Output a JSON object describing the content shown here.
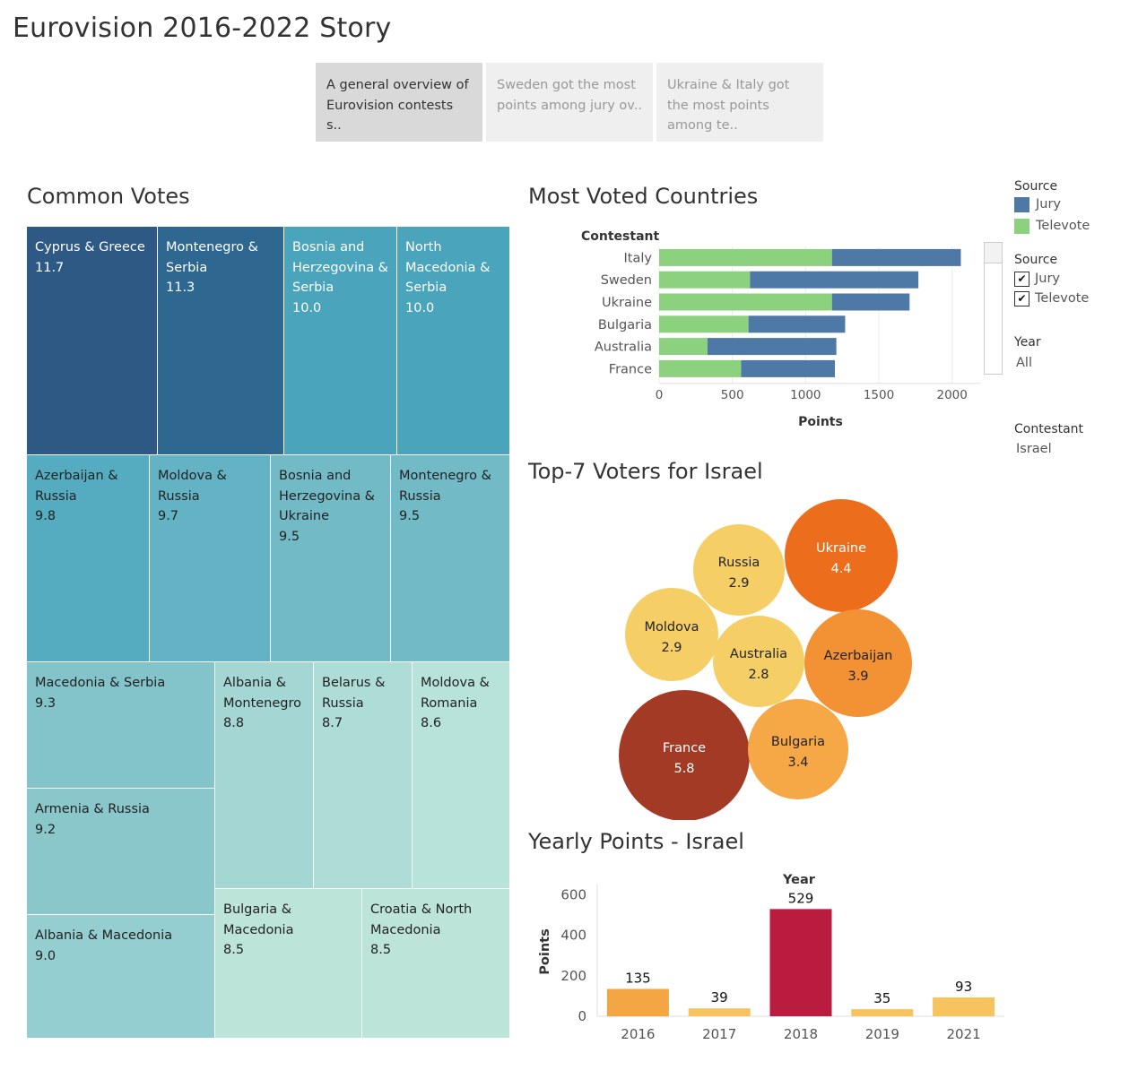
{
  "title": "Eurovision 2016-2022 Story",
  "story_points": [
    {
      "label": "A general overview of Eurovision contests s..",
      "active": true
    },
    {
      "label": "Sweden got the most points among jury ov..",
      "active": false
    },
    {
      "label": "Ukraine & Italy got the most points among te..",
      "active": false
    }
  ],
  "legends": {
    "source_color_title": "Source",
    "source_color_items": [
      {
        "label": "Jury",
        "color": "#4e79a7"
      },
      {
        "label": "Televote",
        "color": "#8cd17d"
      }
    ],
    "source_filter_title": "Source",
    "source_filter_items": [
      {
        "label": "Jury",
        "checked": true
      },
      {
        "label": "Televote",
        "checked": true
      }
    ],
    "year_filter_title": "Year",
    "year_filter_value": "All",
    "contestant_filter_title": "Contestant",
    "contestant_filter_value": "Israel"
  },
  "colors": {
    "jury": "#4e79a7",
    "televote": "#8cd17d",
    "bar_highlight": "#b91c3f",
    "bar_orange": "#f4a544",
    "bar_light": "#f7c35f"
  },
  "chart_data": [
    {
      "type": "treemap",
      "title": "Common Votes",
      "items": [
        {
          "label": "Cyprus & Greece",
          "value": "11.7"
        },
        {
          "label": "Montenegro & Serbia",
          "value": "11.3"
        },
        {
          "label": "Bosnia and Herzegovina & Serbia",
          "value": "10.0"
        },
        {
          "label": "North Macedonia & Serbia",
          "value": "10.0"
        },
        {
          "label": "Azerbaijan & Russia",
          "value": "9.8"
        },
        {
          "label": "Moldova & Russia",
          "value": "9.7"
        },
        {
          "label": "Bosnia and Herzegovina & Ukraine",
          "value": "9.5"
        },
        {
          "label": "Montenegro & Russia",
          "value": "9.5"
        },
        {
          "label": "Macedonia & Serbia",
          "value": "9.3"
        },
        {
          "label": "Albania & Montenegro",
          "value": "8.8"
        },
        {
          "label": "Belarus & Russia",
          "value": "8.7"
        },
        {
          "label": "Moldova & Romania",
          "value": "8.6"
        },
        {
          "label": "Armenia & Russia",
          "value": "9.2"
        },
        {
          "label": "Albania & Macedonia",
          "value": "9.0"
        },
        {
          "label": "Bulgaria & Macedonia",
          "value": "8.5"
        },
        {
          "label": "Croatia & North Macedonia",
          "value": "8.5"
        }
      ]
    },
    {
      "type": "bar",
      "orientation": "horizontal",
      "stacked": true,
      "title": "Most Voted Countries",
      "row_header": "Contestant",
      "categories": [
        "Italy",
        "Sweden",
        "Ukraine",
        "Bulgaria",
        "Australia",
        "France"
      ],
      "series": [
        {
          "name": "Televote",
          "values": [
            1180,
            620,
            1180,
            610,
            330,
            560
          ]
        },
        {
          "name": "Jury",
          "values": [
            880,
            1150,
            530,
            660,
            880,
            640
          ]
        }
      ],
      "xlabel": "Points",
      "xlim": [
        0,
        2100
      ],
      "xticks": [
        "0",
        "500",
        "1000",
        "1500",
        "2000"
      ],
      "grid": true
    },
    {
      "type": "bubble",
      "title": "Top-7 Voters for Israel",
      "items": [
        {
          "label": "Ukraine",
          "value": "4.4"
        },
        {
          "label": "Russia",
          "value": "2.9"
        },
        {
          "label": "Moldova",
          "value": "2.9"
        },
        {
          "label": "Australia",
          "value": "2.8"
        },
        {
          "label": "Azerbaijan",
          "value": "3.9"
        },
        {
          "label": "France",
          "value": "5.8"
        },
        {
          "label": "Bulgaria",
          "value": "3.4"
        }
      ]
    },
    {
      "type": "bar",
      "title": "Yearly Points - Israel",
      "xlabel": "Year",
      "ylabel": "Points",
      "categories": [
        "2016",
        "2017",
        "2018",
        "2019",
        "2021"
      ],
      "values": [
        135,
        39,
        529,
        35,
        93
      ],
      "ylim": [
        0,
        650
      ],
      "yticks": [
        "0",
        "200",
        "400",
        "600"
      ]
    }
  ]
}
